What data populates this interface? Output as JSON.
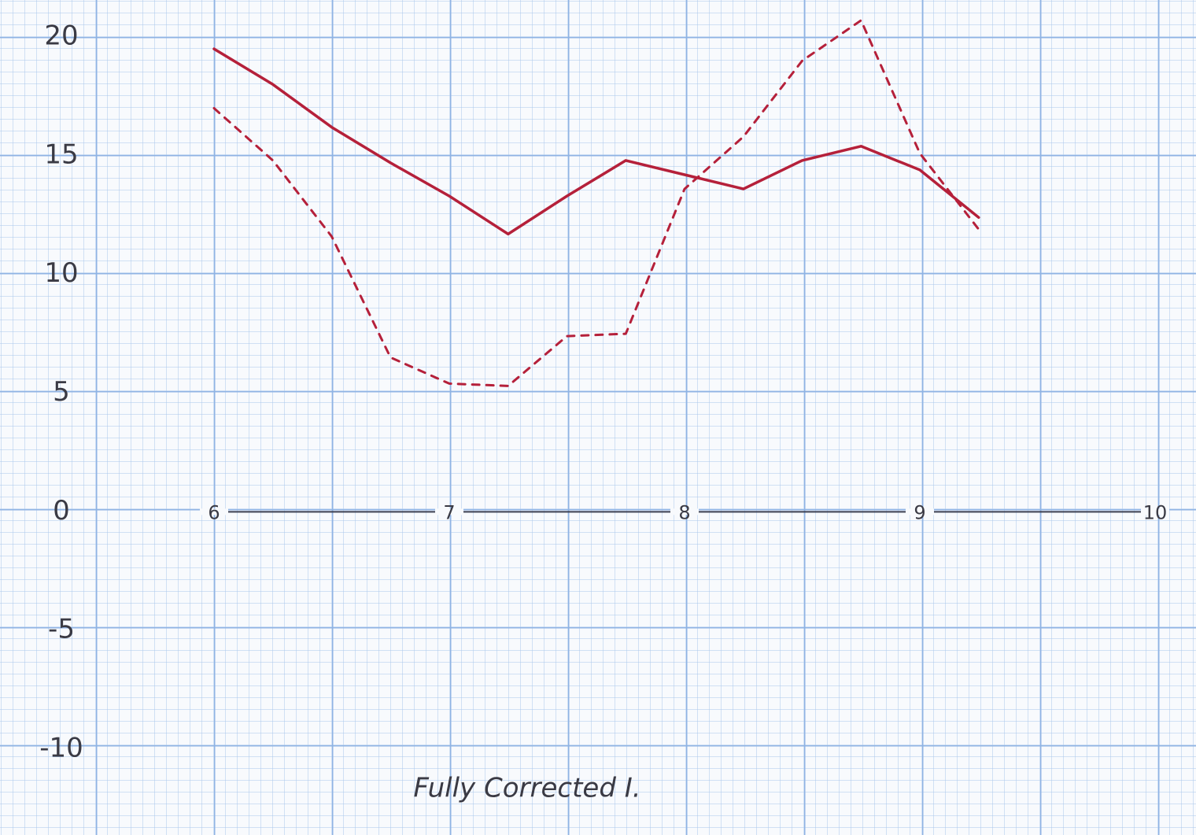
{
  "chart_data": {
    "type": "line",
    "title": "Fully Corrected I.",
    "x": [
      6,
      6.25,
      6.5,
      6.75,
      7,
      7.25,
      7.5,
      7.75,
      8,
      8.25,
      8.5,
      8.75,
      9,
      9.25
    ],
    "series": [
      {
        "color": "#b5203a",
        "dashed": false,
        "values": [
          19.5,
          18,
          16.2,
          14.7,
          13.3,
          11.7,
          13.3,
          14.8,
          14.2,
          13.6,
          14.8,
          15.4,
          14.4,
          12.4
        ]
      },
      {
        "color": "#b5203a",
        "dashed": true,
        "values": [
          17,
          14.8,
          11.6,
          6.5,
          5.4,
          5.3,
          7.4,
          7.5,
          13.6,
          15.8,
          19,
          20.7,
          15.1,
          11.9
        ]
      }
    ],
    "xlim": [
      6,
      10
    ],
    "xticks": [
      6,
      7,
      8,
      9,
      10
    ],
    "ylim": [
      -10,
      20
    ],
    "yticks": [
      20,
      15,
      10,
      5,
      0,
      -5,
      -10
    ]
  }
}
